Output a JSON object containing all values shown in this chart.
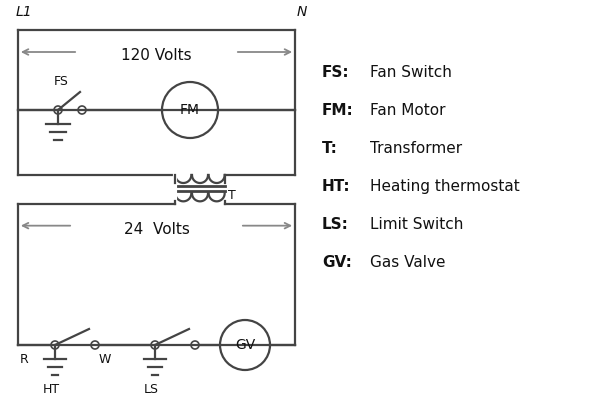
{
  "bg_color": "#ffffff",
  "line_color": "#444444",
  "arrow_color": "#888888",
  "text_color": "#111111",
  "legend": [
    [
      "FS:",
      "Fan Switch"
    ],
    [
      "FM:",
      "Fan Motor"
    ],
    [
      "T:",
      "Transformer"
    ],
    [
      "HT:",
      "Heating thermostat"
    ],
    [
      "LS:",
      "Limit Switch"
    ],
    [
      "GV:",
      "Gas Valve"
    ]
  ],
  "L1_label": "L1",
  "N_label": "N",
  "v120_label": "120 Volts",
  "v24_label": "24  Volts",
  "T_label": "T",
  "FS_label": "FS",
  "FM_label": "FM",
  "R_label": "R",
  "W_label": "W",
  "HT_label": "HT",
  "LS_label": "LS",
  "GV_label": "GV"
}
